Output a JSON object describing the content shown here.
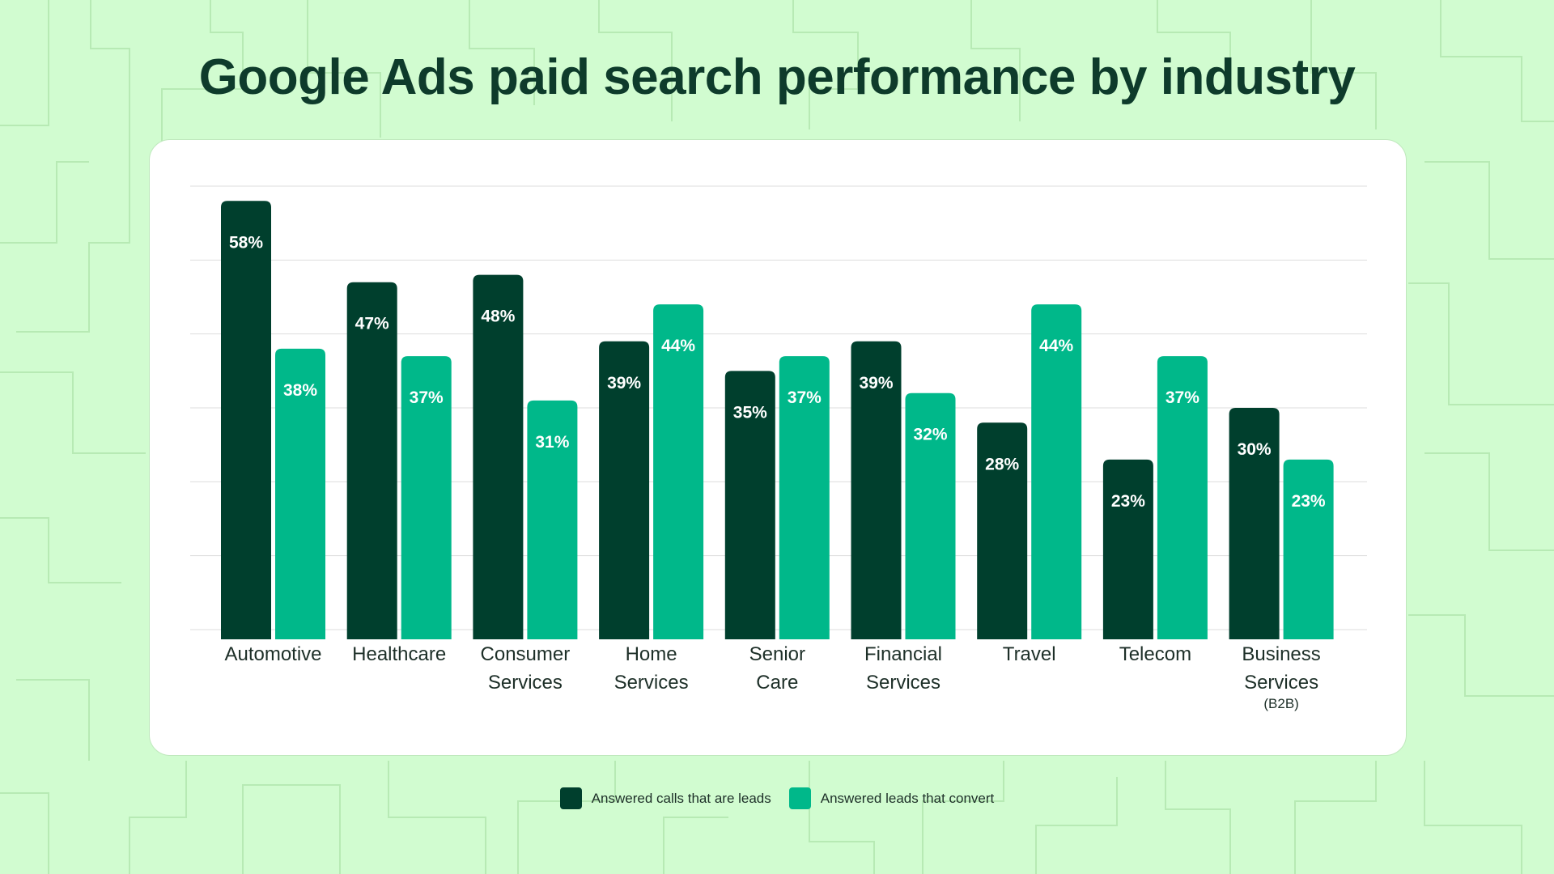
{
  "title": "Google Ads paid search performance by industry",
  "colors": {
    "background": "#d1fcd0",
    "pattern": "#b7eab4",
    "series_dark": "#003f2d",
    "series_light": "#00b88a",
    "grid": "#dddddd",
    "axis_text": "#1d2f28"
  },
  "chart_data": {
    "type": "bar",
    "title": "Google Ads paid search performance by industry",
    "categories": [
      [
        "Automotive"
      ],
      [
        "Healthcare"
      ],
      [
        "Consumer",
        "Services"
      ],
      [
        "Home",
        "Services"
      ],
      [
        "Senior",
        "Care"
      ],
      [
        "Financial",
        "Services"
      ],
      [
        "Travel"
      ],
      [
        "Telecom"
      ],
      [
        "Business",
        "Services"
      ]
    ],
    "category_notes": [
      "",
      "",
      "",
      "",
      "",
      "",
      "",
      "",
      "(B2B)"
    ],
    "series": [
      {
        "name": "Answered calls that are leads",
        "color": "#003f2d",
        "values": [
          58,
          47,
          48,
          39,
          35,
          39,
          28,
          23,
          30
        ],
        "labels": [
          "58%",
          "47%",
          "48%",
          "39%",
          "35%",
          "39%",
          "28%",
          "23%",
          "30%"
        ]
      },
      {
        "name": "Answered leads that convert",
        "color": "#00b88a",
        "values": [
          38,
          37,
          31,
          44,
          37,
          32,
          44,
          37,
          23
        ],
        "labels": [
          "38%",
          "37%",
          "31%",
          "44%",
          "37%",
          "32%",
          "44%",
          "37%",
          "23%"
        ]
      }
    ],
    "ylim": [
      0,
      60
    ],
    "grid": true,
    "legend_position": "bottom-center"
  },
  "legend": [
    {
      "label": "Answered calls that are leads",
      "color": "#003f2d"
    },
    {
      "label": "Answered leads that convert",
      "color": "#00b88a"
    }
  ]
}
